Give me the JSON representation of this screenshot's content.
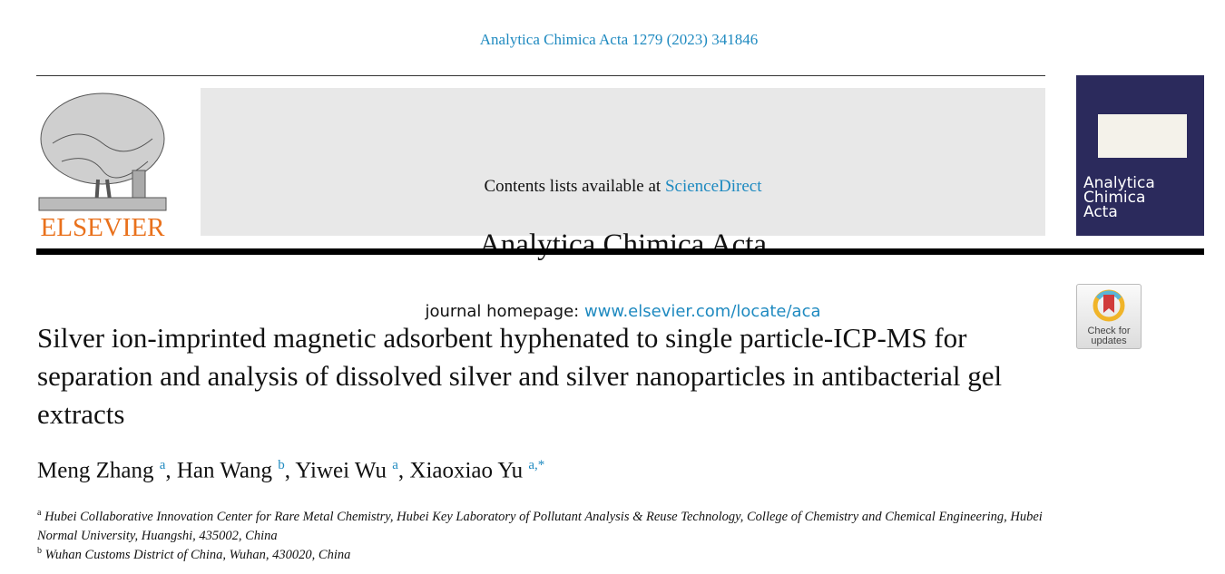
{
  "citation": "Analytica Chimica Acta 1279 (2023) 341846",
  "header": {
    "contents_prefix": "Contents lists available at ",
    "contents_link": "ScienceDirect",
    "journal_title": "Analytica Chimica Acta",
    "homepage_prefix": "journal homepage: ",
    "homepage_link": "www.elsevier.com/locate/aca",
    "publisher": "ELSEVIER"
  },
  "cover": {
    "title_lines": [
      "Analytica",
      "Chimica",
      "Acta"
    ],
    "background": "#2b2a5c"
  },
  "check_updates": {
    "line1": "Check for",
    "line2": "updates"
  },
  "title": "Silver ion-imprinted magnetic adsorbent hyphenated to single particle-ICP-MS for separation and analysis of dissolved silver and silver nanoparticles in antibacterial gel extracts",
  "authors": [
    {
      "name": "Meng Zhang",
      "sup": "a"
    },
    {
      "name": "Han Wang",
      "sup": "b"
    },
    {
      "name": "Yiwei Wu",
      "sup": "a"
    },
    {
      "name": "Xiaoxiao Yu",
      "sup": "a,*"
    }
  ],
  "affiliations": [
    {
      "label": "a",
      "text": "Hubei Collaborative Innovation Center for Rare Metal Chemistry, Hubei Key Laboratory of Pollutant Analysis & Reuse Technology, College of Chemistry and Chemical Engineering, Hubei Normal University, Huangshi, 435002, China"
    },
    {
      "label": "b",
      "text": "Wuhan Customs District of China, Wuhan, 430020, China"
    }
  ],
  "colors": {
    "link": "#1f8ac0",
    "elsevier_orange": "#e9711c"
  }
}
